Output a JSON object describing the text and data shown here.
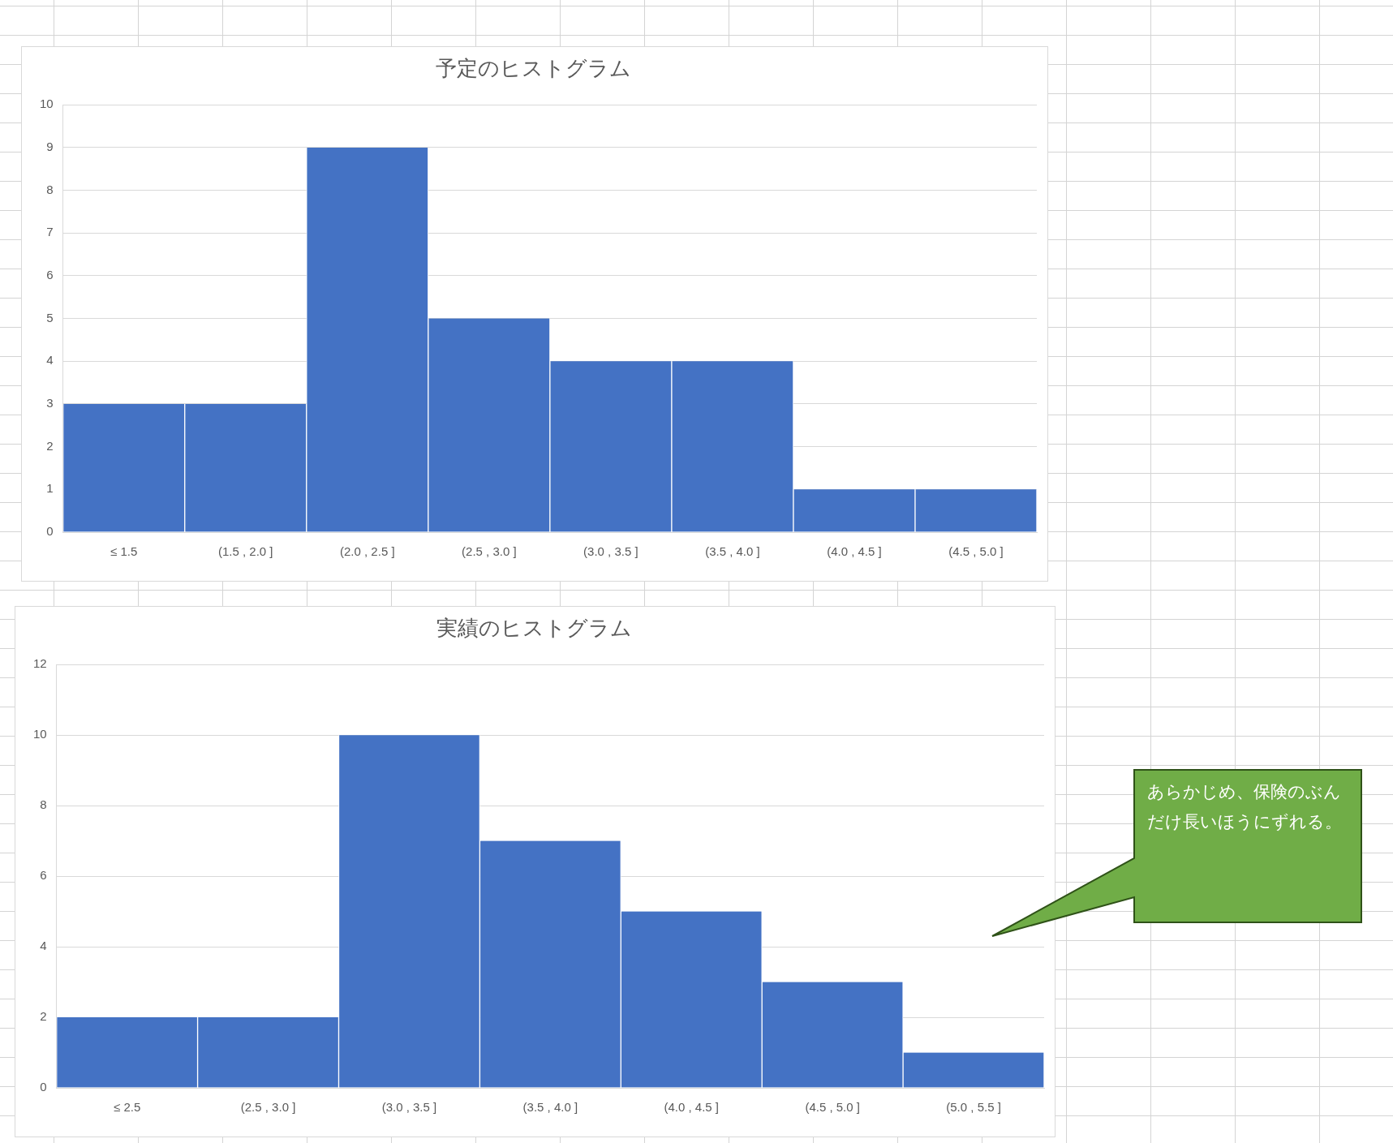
{
  "chart_data": [
    {
      "type": "bar",
      "title": "予定のヒストグラム",
      "categories": [
        "≤ 1.5",
        "(1.5 , 2.0 ]",
        "(2.0 , 2.5 ]",
        "(2.5 , 3.0 ]",
        "(3.0 , 3.5 ]",
        "(3.5 , 4.0 ]",
        "(4.0 , 4.5 ]",
        "(4.5 , 5.0 ]"
      ],
      "values": [
        3,
        3,
        9,
        5,
        4,
        4,
        1,
        1
      ],
      "color": "#4472c4",
      "ylim": [
        0,
        10
      ],
      "yticks": [
        0,
        1,
        2,
        3,
        4,
        5,
        6,
        7,
        8,
        9,
        10
      ],
      "grid": "y"
    },
    {
      "type": "bar",
      "title": "実績のヒストグラム",
      "categories": [
        "≤ 2.5",
        "(2.5 , 3.0 ]",
        "(3.0 , 3.5 ]",
        "(3.5 , 4.0 ]",
        "(4.0 , 4.5 ]",
        "(4.5 , 5.0 ]",
        "(5.0 , 5.5 ]"
      ],
      "values": [
        2,
        2,
        10,
        7,
        5,
        3,
        1
      ],
      "color": "#4472c4",
      "ylim": [
        0,
        12
      ],
      "yticks": [
        0,
        2,
        4,
        6,
        8,
        10,
        12
      ],
      "grid": "y",
      "annotations": [
        "あらかじめ、保険のぶんだけ長いほうにずれる。"
      ]
    }
  ]
}
